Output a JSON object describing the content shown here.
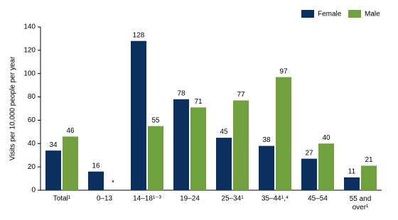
{
  "chart_data": {
    "type": "bar",
    "y_label": "Visits per 10,000 people per year",
    "categories": [
      "Total¹",
      "0–13",
      "14–18¹⁻³",
      "19–24",
      "25–34¹",
      "35–44¹,⁴",
      "45–54",
      "55 and over¹"
    ],
    "series": [
      {
        "name": "Female",
        "color": "#0b2f5f",
        "values": [
          34,
          16,
          128,
          78,
          45,
          38,
          27,
          11
        ]
      },
      {
        "name": "Male",
        "color": "#6fa23c",
        "values": [
          46,
          null,
          55,
          71,
          77,
          97,
          40,
          21
        ],
        "value_labels": [
          "46",
          "*",
          "55",
          "71",
          "77",
          "97",
          "40",
          "21"
        ]
      }
    ],
    "ylim": [
      0,
      140
    ],
    "yticks": [
      0,
      20,
      40,
      60,
      80,
      100,
      120,
      140
    ],
    "legend": "top-right"
  }
}
